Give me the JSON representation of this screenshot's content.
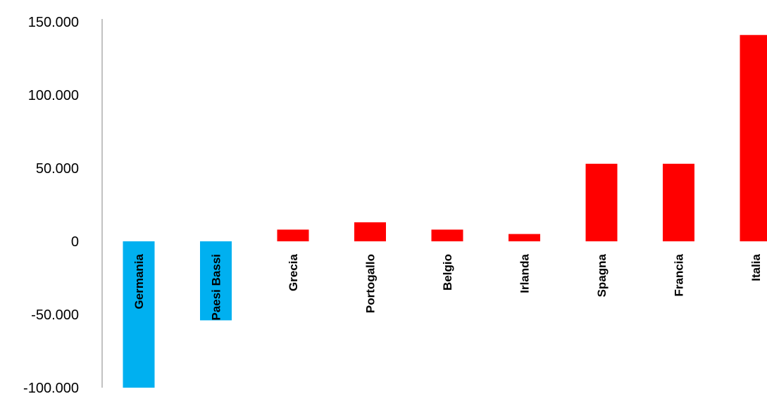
{
  "chart_data": {
    "type": "bar",
    "title": "",
    "xlabel": "",
    "ylabel": "",
    "ylim": [
      -100000,
      150000
    ],
    "yticks": [
      150000,
      100000,
      50000,
      0,
      -50000,
      -100000
    ],
    "ytick_labels": [
      "150.000",
      "100.000",
      "50.000",
      "0",
      "-50.000",
      "-100.000"
    ],
    "grid": false,
    "legend": "none",
    "categories": [
      "Germania",
      "Paesi Bassi",
      "Grecia",
      "Portogallo",
      "Belgio",
      "Irlanda",
      "Spagna",
      "Francia",
      "Italia"
    ],
    "values": [
      -100000,
      -54000,
      8000,
      13000,
      8000,
      5000,
      53000,
      53000,
      141000
    ],
    "colors": [
      "#00B0F0",
      "#00B0F0",
      "#FF0000",
      "#FF0000",
      "#FF0000",
      "#FF0000",
      "#FF0000",
      "#FF0000",
      "#FF0000"
    ]
  }
}
